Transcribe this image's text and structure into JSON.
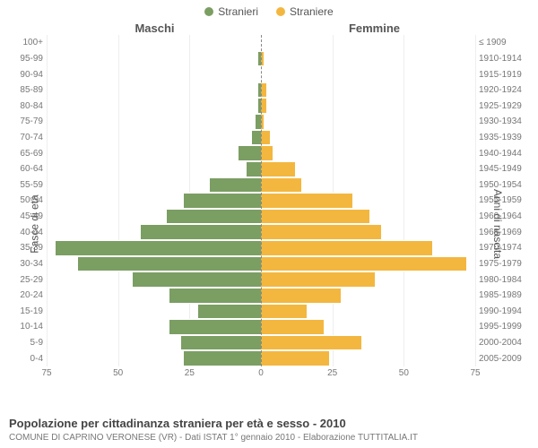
{
  "legend": {
    "male": {
      "label": "Stranieri",
      "color": "#7b9e63"
    },
    "female": {
      "label": "Straniere",
      "color": "#f3b73f"
    }
  },
  "headers": {
    "male": "Maschi",
    "female": "Femmine"
  },
  "axis_titles": {
    "left": "Fasce di età",
    "right": "Anni di nascita"
  },
  "chart": {
    "type": "population-pyramid",
    "x_max": 75,
    "x_ticks_left": [
      75,
      50,
      25,
      0
    ],
    "x_ticks_right": [
      0,
      25,
      50,
      75
    ],
    "bar_color_male": "#7b9e63",
    "bar_color_female": "#f3b73f",
    "bar_border": "#ffffff",
    "grid_color": "#eeeeee",
    "center_line_color": "#888888",
    "background": "#ffffff",
    "label_color": "#777777",
    "label_fontsize": 10,
    "rows": [
      {
        "age": "100+",
        "birth": "≤ 1909",
        "m": 0,
        "f": 0
      },
      {
        "age": "95-99",
        "birth": "1910-1914",
        "m": 1,
        "f": 1
      },
      {
        "age": "90-94",
        "birth": "1915-1919",
        "m": 0,
        "f": 0
      },
      {
        "age": "85-89",
        "birth": "1920-1924",
        "m": 1,
        "f": 2
      },
      {
        "age": "80-84",
        "birth": "1925-1929",
        "m": 1,
        "f": 2
      },
      {
        "age": "75-79",
        "birth": "1930-1934",
        "m": 2,
        "f": 1
      },
      {
        "age": "70-74",
        "birth": "1935-1939",
        "m": 3,
        "f": 3
      },
      {
        "age": "65-69",
        "birth": "1940-1944",
        "m": 8,
        "f": 4
      },
      {
        "age": "60-64",
        "birth": "1945-1949",
        "m": 5,
        "f": 12
      },
      {
        "age": "55-59",
        "birth": "1950-1954",
        "m": 18,
        "f": 14
      },
      {
        "age": "50-54",
        "birth": "1955-1959",
        "m": 27,
        "f": 32
      },
      {
        "age": "45-49",
        "birth": "1960-1964",
        "m": 33,
        "f": 38
      },
      {
        "age": "40-44",
        "birth": "1965-1969",
        "m": 42,
        "f": 42
      },
      {
        "age": "35-39",
        "birth": "1970-1974",
        "m": 72,
        "f": 60
      },
      {
        "age": "30-34",
        "birth": "1975-1979",
        "m": 64,
        "f": 72
      },
      {
        "age": "25-29",
        "birth": "1980-1984",
        "m": 45,
        "f": 40
      },
      {
        "age": "20-24",
        "birth": "1985-1989",
        "m": 32,
        "f": 28
      },
      {
        "age": "15-19",
        "birth": "1990-1994",
        "m": 22,
        "f": 16
      },
      {
        "age": "10-14",
        "birth": "1995-1999",
        "m": 32,
        "f": 22
      },
      {
        "age": "5-9",
        "birth": "2000-2004",
        "m": 28,
        "f": 35
      },
      {
        "age": "0-4",
        "birth": "2005-2009",
        "m": 27,
        "f": 24
      }
    ]
  },
  "caption": "Popolazione per cittadinanza straniera per età e sesso - 2010",
  "subcaption": "COMUNE DI CAPRINO VERONESE (VR) - Dati ISTAT 1° gennaio 2010 - Elaborazione TUTTITALIA.IT"
}
